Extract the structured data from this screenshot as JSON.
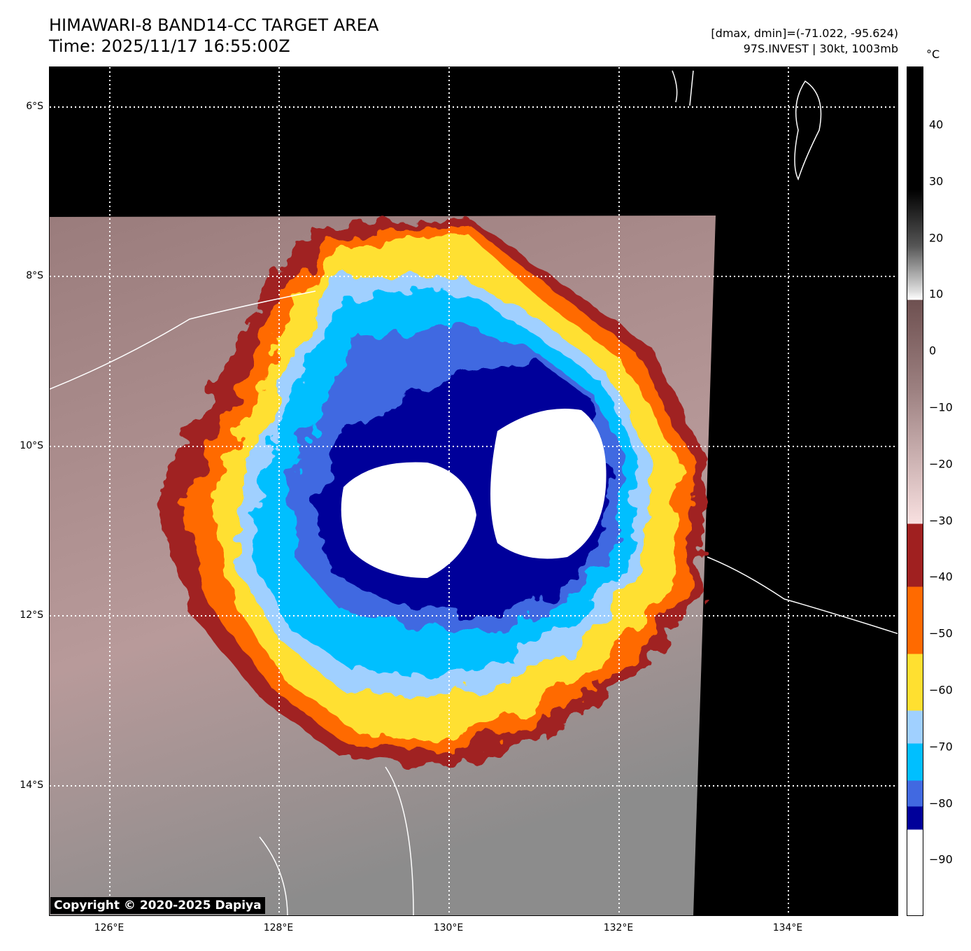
{
  "header": {
    "title": "HIMAWARI-8 BAND14-CC TARGET AREA",
    "time": "Time: 2025/11/17 16:55:00Z",
    "range": "[dmax, dmin]=(-71.022, -95.624)",
    "storm": "97S.INVEST | 30kt, 1003mb"
  },
  "axes": {
    "lat_ticks": [
      "6°S",
      "8°S",
      "10°S",
      "12°S",
      "14°S"
    ],
    "lon_ticks": [
      "126°E",
      "128°E",
      "130°E",
      "132°E",
      "134°E"
    ]
  },
  "colorbar": {
    "unit": "°C",
    "ticks": [
      "40",
      "30",
      "20",
      "10",
      "0",
      "−10",
      "−20",
      "−30",
      "−40",
      "−50",
      "−60",
      "−70",
      "−80",
      "−90"
    ],
    "colors": {
      "black": "#000000",
      "brown": "#6e5050",
      "pink": "#f8e0e0",
      "red": "#a02020",
      "orange": "#ff6a00",
      "yellow": "#ffe030",
      "lightblue": "#a0d0ff",
      "cyan": "#00bfff",
      "royalblue": "#4169e1",
      "navy": "#00009a",
      "white": "#ffffff"
    }
  },
  "copyright": "Copyright © 2020-2025 Dapiya"
}
